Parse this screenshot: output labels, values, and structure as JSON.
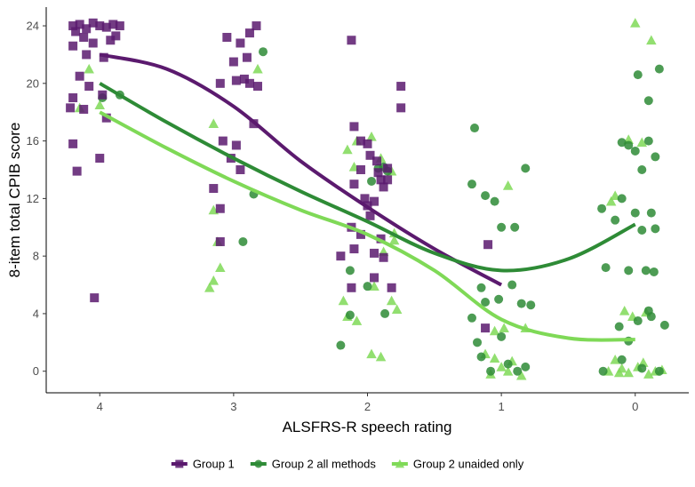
{
  "colors": {
    "group1": "#5b1a6e",
    "group2_all": "#2e8b36",
    "group2_unaided": "#7fd957",
    "axis": "#000000",
    "tick_text": "#4d4d4d"
  },
  "chart_data": {
    "type": "scatter",
    "xlabel": "ALSFRS-R speech rating",
    "ylabel": "8-item total CPIB score",
    "x_categories": [
      "4",
      "3",
      "2",
      "1",
      "0"
    ],
    "x_axis_reversed": true,
    "xlim": [
      4.4,
      -0.4
    ],
    "ylim": [
      -1.5,
      25.3
    ],
    "yticks": [
      "0",
      "4",
      "8",
      "12",
      "16",
      "20",
      "24"
    ],
    "grid": false,
    "legend_position": "bottom",
    "legend": [
      {
        "label": "Group 1",
        "marker": "square",
        "color": "#5b1a6e"
      },
      {
        "label": "Group 2 all methods",
        "marker": "circle",
        "color": "#2e8b36"
      },
      {
        "label": "Group 2 unaided only",
        "marker": "triangle",
        "color": "#7fd957"
      }
    ],
    "series": [
      {
        "name": "Group 1",
        "marker": "square",
        "color": "#5b1a6e",
        "points": [
          [
            4.2,
            24
          ],
          [
            4.15,
            24.1
          ],
          [
            4.1,
            23.8
          ],
          [
            4.05,
            24.2
          ],
          [
            4.0,
            24
          ],
          [
            3.95,
            23.9
          ],
          [
            3.9,
            24.1
          ],
          [
            3.85,
            24
          ],
          [
            4.18,
            23.6
          ],
          [
            4.12,
            23.2
          ],
          [
            4.05,
            22.8
          ],
          [
            3.92,
            23
          ],
          [
            3.88,
            23.3
          ],
          [
            4.2,
            22.6
          ],
          [
            4.1,
            22
          ],
          [
            3.97,
            21.8
          ],
          [
            4.15,
            20.5
          ],
          [
            4.08,
            19.8
          ],
          [
            4.2,
            19
          ],
          [
            3.98,
            19.2
          ],
          [
            4.12,
            18.2
          ],
          [
            4.22,
            18.3
          ],
          [
            3.95,
            17.6
          ],
          [
            4.2,
            15.8
          ],
          [
            4.17,
            13.9
          ],
          [
            4.0,
            14.8
          ],
          [
            4.04,
            5.1
          ],
          [
            3.1,
            20
          ],
          [
            2.98,
            20.2
          ],
          [
            2.92,
            20.3
          ],
          [
            2.88,
            20
          ],
          [
            2.82,
            19.8
          ],
          [
            3.05,
            23.2
          ],
          [
            2.95,
            22.8
          ],
          [
            2.88,
            23.5
          ],
          [
            2.83,
            24
          ],
          [
            2.9,
            21.8
          ],
          [
            3.0,
            21.5
          ],
          [
            2.85,
            17.2
          ],
          [
            3.08,
            16
          ],
          [
            2.98,
            15.7
          ],
          [
            3.02,
            14.8
          ],
          [
            2.95,
            14
          ],
          [
            3.15,
            12.7
          ],
          [
            3.1,
            11.3
          ],
          [
            3.1,
            9
          ],
          [
            2.12,
            23
          ],
          [
            2.1,
            17
          ],
          [
            2.05,
            16
          ],
          [
            2.0,
            15.8
          ],
          [
            1.98,
            15
          ],
          [
            1.93,
            14.6
          ],
          [
            2.05,
            14
          ],
          [
            1.85,
            14.1
          ],
          [
            1.92,
            13.8
          ],
          [
            1.9,
            13.3
          ],
          [
            2.1,
            13
          ],
          [
            2.02,
            12
          ],
          [
            1.95,
            11.8
          ],
          [
            1.88,
            12.8
          ],
          [
            1.85,
            13.3
          ],
          [
            2.0,
            11.5
          ],
          [
            1.98,
            10.8
          ],
          [
            2.12,
            10
          ],
          [
            2.05,
            9.5
          ],
          [
            1.9,
            9.2
          ],
          [
            2.1,
            8.5
          ],
          [
            2.2,
            8
          ],
          [
            1.95,
            8.2
          ],
          [
            1.88,
            7.9
          ],
          [
            1.95,
            6.5
          ],
          [
            2.12,
            5.8
          ],
          [
            1.82,
            5.8
          ],
          [
            1.75,
            18.3
          ],
          [
            1.75,
            19.8
          ],
          [
            1.1,
            8.8
          ],
          [
            1.12,
            3
          ]
        ]
      },
      {
        "name": "Group 2 all methods",
        "marker": "circle",
        "color": "#2e8b36",
        "points": [
          [
            3.98,
            19
          ],
          [
            3.85,
            19.2
          ],
          [
            2.78,
            22.2
          ],
          [
            2.85,
            12.3
          ],
          [
            2.93,
            9
          ],
          [
            1.92,
            14.1
          ],
          [
            1.88,
            14.2
          ],
          [
            1.85,
            13.9
          ],
          [
            1.97,
            13.2
          ],
          [
            2.13,
            7
          ],
          [
            2.2,
            1.8
          ],
          [
            1.87,
            4
          ],
          [
            2.13,
            3.9
          ],
          [
            2.0,
            5.9
          ],
          [
            1.2,
            16.9
          ],
          [
            1.22,
            13
          ],
          [
            1.12,
            12.2
          ],
          [
            1.05,
            11.8
          ],
          [
            1.0,
            10
          ],
          [
            0.9,
            10
          ],
          [
            0.82,
            14.1
          ],
          [
            1.15,
            5.8
          ],
          [
            1.12,
            4.8
          ],
          [
            1.02,
            5
          ],
          [
            0.92,
            6
          ],
          [
            0.85,
            4.7
          ],
          [
            0.78,
            4.6
          ],
          [
            1.18,
            2
          ],
          [
            1.15,
            1
          ],
          [
            1.08,
            0
          ],
          [
            0.95,
            0.5
          ],
          [
            0.88,
            0
          ],
          [
            0.82,
            0.3
          ],
          [
            1.22,
            3.7
          ],
          [
            1.0,
            2.4
          ],
          [
            0.25,
            11.3
          ],
          [
            0.1,
            15.9
          ],
          [
            0.05,
            15.7
          ],
          [
            0.0,
            15.3
          ],
          [
            -0.1,
            16
          ],
          [
            -0.05,
            14
          ],
          [
            -0.15,
            14.9
          ],
          [
            -0.18,
            21
          ],
          [
            -0.02,
            20.6
          ],
          [
            -0.1,
            18.8
          ],
          [
            -0.12,
            11
          ],
          [
            -0.15,
            9.9
          ],
          [
            -0.05,
            9.8
          ],
          [
            0.0,
            11
          ],
          [
            0.1,
            12
          ],
          [
            0.15,
            10.5
          ],
          [
            0.05,
            7
          ],
          [
            -0.08,
            7
          ],
          [
            -0.14,
            6.9
          ],
          [
            0.22,
            7.2
          ],
          [
            -0.12,
            3.8
          ],
          [
            -0.02,
            3.5
          ],
          [
            0.12,
            3.1
          ],
          [
            0.24,
            0
          ],
          [
            0.1,
            0.8
          ],
          [
            -0.05,
            0.2
          ],
          [
            -0.18,
            0
          ],
          [
            -0.22,
            3.2
          ],
          [
            0.05,
            2.1
          ],
          [
            -0.1,
            4.2
          ]
        ]
      },
      {
        "name": "Group 2 unaided only",
        "marker": "triangle",
        "color": "#7fd957",
        "points": [
          [
            4.0,
            18.5
          ],
          [
            4.15,
            18.3
          ],
          [
            4.08,
            21
          ],
          [
            2.82,
            21
          ],
          [
            3.15,
            17.2
          ],
          [
            3.15,
            11.2
          ],
          [
            3.12,
            9
          ],
          [
            3.1,
            7.2
          ],
          [
            3.18,
            5.8
          ],
          [
            3.15,
            6.3
          ],
          [
            1.97,
            16.3
          ],
          [
            2.08,
            16
          ],
          [
            2.15,
            15.4
          ],
          [
            2.1,
            14.2
          ],
          [
            1.9,
            14.8
          ],
          [
            1.82,
            13.9
          ],
          [
            1.8,
            9.6
          ],
          [
            1.8,
            9.1
          ],
          [
            1.88,
            8.3
          ],
          [
            2.18,
            4.9
          ],
          [
            2.15,
            3.8
          ],
          [
            2.08,
            3.5
          ],
          [
            1.82,
            4.9
          ],
          [
            1.78,
            4.3
          ],
          [
            1.97,
            1.2
          ],
          [
            1.9,
            1
          ],
          [
            1.95,
            5.9
          ],
          [
            0.95,
            12.9
          ],
          [
            0.98,
            3
          ],
          [
            1.05,
            2.8
          ],
          [
            0.82,
            3
          ],
          [
            1.12,
            1.2
          ],
          [
            1.05,
            0.9
          ],
          [
            0.92,
            0.7
          ],
          [
            1.0,
            0.3
          ],
          [
            0.95,
            0
          ],
          [
            1.08,
            -0.2
          ],
          [
            0.85,
            -0.3
          ],
          [
            0.0,
            24.2
          ],
          [
            -0.12,
            23
          ],
          [
            0.05,
            16.1
          ],
          [
            0.15,
            12.2
          ],
          [
            0.18,
            11.8
          ],
          [
            -0.05,
            15.9
          ],
          [
            0.02,
            3.8
          ],
          [
            0.08,
            4.2
          ],
          [
            -0.08,
            4.1
          ],
          [
            0.15,
            0.8
          ],
          [
            0.1,
            0.2
          ],
          [
            0.2,
            0
          ],
          [
            0.05,
            -0.1
          ],
          [
            -0.02,
            0.3
          ],
          [
            -0.15,
            0
          ],
          [
            -0.2,
            0.1
          ],
          [
            -0.1,
            -0.2
          ],
          [
            0.12,
            -0.1
          ],
          [
            -0.06,
            0.6
          ]
        ]
      }
    ],
    "trend_lines": [
      {
        "name": "Group 1",
        "color": "#5b1a6e",
        "x": [
          4,
          3.5,
          3,
          2.5,
          2,
          1.5,
          1
        ],
        "y": [
          22,
          21,
          18.4,
          14.6,
          11.4,
          8.5,
          6
        ]
      },
      {
        "name": "Group 2 all methods",
        "color": "#2e8b36",
        "x": [
          4,
          3.5,
          3,
          2.5,
          2,
          1.5,
          1,
          0.5,
          0
        ],
        "y": [
          20,
          17.3,
          14.8,
          12.5,
          10.4,
          8.2,
          7.0,
          7.8,
          10.2
        ]
      },
      {
        "name": "Group 2 unaided only",
        "color": "#7fd957",
        "x": [
          4,
          3.5,
          3,
          2.5,
          2,
          1.5,
          1,
          0.5,
          0
        ],
        "y": [
          18,
          15.5,
          13.2,
          11.2,
          9.5,
          7.0,
          3.6,
          2.3,
          2.2
        ]
      }
    ]
  }
}
